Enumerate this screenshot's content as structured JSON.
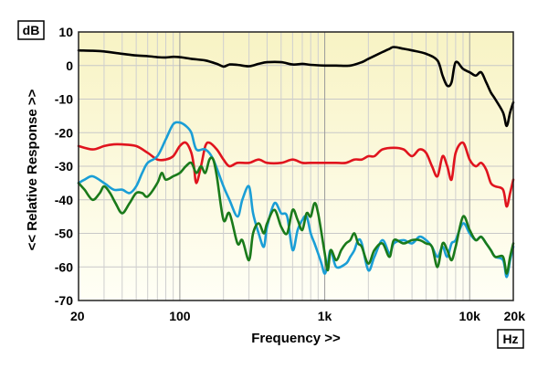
{
  "chart_data": {
    "type": "line",
    "xlabel": "Frequency >>",
    "ylabel": "<< Relative Response >>",
    "x_unit": "Hz",
    "y_unit": "dB",
    "x_scale": "log",
    "xlim": [
      20,
      20000
    ],
    "ylim": [
      -70,
      10
    ],
    "grid": true,
    "x_ticks": [
      {
        "value": 20,
        "label": "20"
      },
      {
        "value": 100,
        "label": "100"
      },
      {
        "value": 1000,
        "label": "1k"
      },
      {
        "value": 10000,
        "label": "10k"
      },
      {
        "value": 20000,
        "label": "20k"
      }
    ],
    "y_ticks": [
      10,
      0,
      -10,
      -20,
      -30,
      -40,
      -50,
      -60,
      -70
    ],
    "series": [
      {
        "color": "#000000",
        "points": [
          [
            20,
            4.5
          ],
          [
            25,
            4.4
          ],
          [
            30,
            4.2
          ],
          [
            40,
            3.5
          ],
          [
            50,
            3
          ],
          [
            60,
            2.8
          ],
          [
            70,
            2.5
          ],
          [
            80,
            2.4
          ],
          [
            90,
            2.6
          ],
          [
            100,
            2.5
          ],
          [
            120,
            2
          ],
          [
            150,
            1.5
          ],
          [
            180,
            0.5
          ],
          [
            200,
            -0.3
          ],
          [
            220,
            0.3
          ],
          [
            250,
            0.2
          ],
          [
            300,
            -0.2
          ],
          [
            350,
            0.5
          ],
          [
            400,
            1
          ],
          [
            500,
            1
          ],
          [
            600,
            0.3
          ],
          [
            700,
            0.5
          ],
          [
            800,
            0.2
          ],
          [
            1000,
            0
          ],
          [
            1200,
            0
          ],
          [
            1500,
            0
          ],
          [
            1800,
            1
          ],
          [
            2000,
            2
          ],
          [
            2500,
            4
          ],
          [
            2800,
            5
          ],
          [
            3000,
            5.5
          ],
          [
            3500,
            5
          ],
          [
            4000,
            4.5
          ],
          [
            5000,
            3.5
          ],
          [
            6000,
            1.5
          ],
          [
            6500,
            -3
          ],
          [
            7000,
            -6
          ],
          [
            7500,
            -5
          ],
          [
            8000,
            1
          ],
          [
            9000,
            -1
          ],
          [
            10000,
            -2
          ],
          [
            11000,
            -3
          ],
          [
            12000,
            -2
          ],
          [
            13000,
            -5
          ],
          [
            14000,
            -8
          ],
          [
            15000,
            -10
          ],
          [
            17000,
            -14
          ],
          [
            18000,
            -18
          ],
          [
            19000,
            -14
          ],
          [
            20000,
            -11
          ]
        ]
      },
      {
        "color": "#e0141e",
        "points": [
          [
            20,
            -24
          ],
          [
            25,
            -25
          ],
          [
            30,
            -24
          ],
          [
            35,
            -23.5
          ],
          [
            40,
            -23.5
          ],
          [
            50,
            -24
          ],
          [
            60,
            -26
          ],
          [
            70,
            -28
          ],
          [
            80,
            -28
          ],
          [
            90,
            -27
          ],
          [
            100,
            -24
          ],
          [
            110,
            -23
          ],
          [
            120,
            -26
          ],
          [
            125,
            -30
          ],
          [
            130,
            -35
          ],
          [
            140,
            -30
          ],
          [
            150,
            -24
          ],
          [
            160,
            -23
          ],
          [
            180,
            -25
          ],
          [
            200,
            -28
          ],
          [
            220,
            -30
          ],
          [
            250,
            -29
          ],
          [
            300,
            -29
          ],
          [
            350,
            -28
          ],
          [
            400,
            -29
          ],
          [
            500,
            -29
          ],
          [
            600,
            -28
          ],
          [
            700,
            -29
          ],
          [
            800,
            -29
          ],
          [
            1000,
            -29
          ],
          [
            1200,
            -29
          ],
          [
            1400,
            -29
          ],
          [
            1600,
            -28
          ],
          [
            1800,
            -28
          ],
          [
            2000,
            -27
          ],
          [
            2200,
            -27
          ],
          [
            2500,
            -25
          ],
          [
            3000,
            -24.5
          ],
          [
            3500,
            -25
          ],
          [
            4000,
            -27
          ],
          [
            4500,
            -25
          ],
          [
            5000,
            -26
          ],
          [
            5500,
            -30
          ],
          [
            6000,
            -33
          ],
          [
            6500,
            -27
          ],
          [
            7000,
            -30
          ],
          [
            7500,
            -34
          ],
          [
            8000,
            -26
          ],
          [
            9000,
            -23
          ],
          [
            10000,
            -28
          ],
          [
            11000,
            -30
          ],
          [
            12000,
            -29
          ],
          [
            13000,
            -31
          ],
          [
            14000,
            -35
          ],
          [
            15000,
            -36
          ],
          [
            17000,
            -37
          ],
          [
            18000,
            -42
          ],
          [
            19000,
            -38
          ],
          [
            20000,
            -34
          ]
        ]
      },
      {
        "color": "#1a9ed6",
        "points": [
          [
            20,
            -35
          ],
          [
            22,
            -34
          ],
          [
            25,
            -33
          ],
          [
            30,
            -35
          ],
          [
            35,
            -37
          ],
          [
            40,
            -37
          ],
          [
            45,
            -38
          ],
          [
            50,
            -36
          ],
          [
            55,
            -32
          ],
          [
            60,
            -29
          ],
          [
            70,
            -27
          ],
          [
            80,
            -22
          ],
          [
            90,
            -17.5
          ],
          [
            100,
            -17
          ],
          [
            110,
            -18
          ],
          [
            120,
            -20
          ],
          [
            130,
            -25
          ],
          [
            150,
            -25
          ],
          [
            170,
            -28
          ],
          [
            200,
            -36
          ],
          [
            220,
            -40
          ],
          [
            250,
            -45
          ],
          [
            270,
            -40
          ],
          [
            300,
            -36
          ],
          [
            320,
            -44
          ],
          [
            350,
            -50
          ],
          [
            380,
            -54
          ],
          [
            400,
            -48
          ],
          [
            450,
            -41
          ],
          [
            500,
            -44
          ],
          [
            550,
            -45
          ],
          [
            600,
            -55
          ],
          [
            650,
            -49
          ],
          [
            700,
            -46
          ],
          [
            750,
            -45
          ],
          [
            800,
            -50
          ],
          [
            850,
            -53
          ],
          [
            900,
            -56
          ],
          [
            950,
            -59
          ],
          [
            1000,
            -62
          ],
          [
            1050,
            -59
          ],
          [
            1100,
            -55
          ],
          [
            1200,
            -60
          ],
          [
            1400,
            -59
          ],
          [
            1500,
            -57
          ],
          [
            1600,
            -55
          ],
          [
            1700,
            -52
          ],
          [
            1800,
            -53
          ],
          [
            2000,
            -61
          ],
          [
            2200,
            -57
          ],
          [
            2500,
            -52
          ],
          [
            2800,
            -56
          ],
          [
            3000,
            -53
          ],
          [
            3500,
            -52
          ],
          [
            4000,
            -53
          ],
          [
            4500,
            -51
          ],
          [
            5000,
            -52
          ],
          [
            5500,
            -54
          ],
          [
            6000,
            -57
          ],
          [
            6500,
            -54
          ],
          [
            7000,
            -57
          ],
          [
            7500,
            -53
          ],
          [
            8000,
            -52
          ],
          [
            9000,
            -47
          ],
          [
            10000,
            -50
          ],
          [
            11000,
            -52
          ],
          [
            12000,
            -51
          ],
          [
            13000,
            -53
          ],
          [
            14000,
            -55
          ],
          [
            15000,
            -57
          ],
          [
            17000,
            -58
          ],
          [
            18000,
            -63
          ],
          [
            19000,
            -58
          ],
          [
            20000,
            -54
          ]
        ]
      },
      {
        "color": "#1a7a1a",
        "points": [
          [
            20,
            -35
          ],
          [
            22,
            -37
          ],
          [
            25,
            -40
          ],
          [
            28,
            -38
          ],
          [
            30,
            -36
          ],
          [
            33,
            -38
          ],
          [
            36,
            -41
          ],
          [
            40,
            -44
          ],
          [
            45,
            -41
          ],
          [
            50,
            -38
          ],
          [
            55,
            -38
          ],
          [
            60,
            -39
          ],
          [
            70,
            -35
          ],
          [
            75,
            -32
          ],
          [
            80,
            -34
          ],
          [
            90,
            -33
          ],
          [
            100,
            -32
          ],
          [
            110,
            -30
          ],
          [
            120,
            -29
          ],
          [
            130,
            -32
          ],
          [
            140,
            -30
          ],
          [
            150,
            -32
          ],
          [
            160,
            -28
          ],
          [
            170,
            -28
          ],
          [
            180,
            -33
          ],
          [
            200,
            -46
          ],
          [
            220,
            -44
          ],
          [
            250,
            -53
          ],
          [
            270,
            -52
          ],
          [
            300,
            -58
          ],
          [
            320,
            -50
          ],
          [
            350,
            -47
          ],
          [
            380,
            -50
          ],
          [
            400,
            -47
          ],
          [
            450,
            -43
          ],
          [
            500,
            -48
          ],
          [
            550,
            -50
          ],
          [
            600,
            -43
          ],
          [
            650,
            -46
          ],
          [
            700,
            -49
          ],
          [
            750,
            -44
          ],
          [
            800,
            -45
          ],
          [
            850,
            -41
          ],
          [
            900,
            -44
          ],
          [
            1000,
            -56
          ],
          [
            1050,
            -61
          ],
          [
            1100,
            -55
          ],
          [
            1200,
            -58
          ],
          [
            1300,
            -55
          ],
          [
            1400,
            -53
          ],
          [
            1500,
            -52
          ],
          [
            1600,
            -50
          ],
          [
            1700,
            -53
          ],
          [
            1800,
            -54
          ],
          [
            2000,
            -59
          ],
          [
            2200,
            -55
          ],
          [
            2500,
            -53
          ],
          [
            2800,
            -57
          ],
          [
            3000,
            -52
          ],
          [
            3500,
            -53
          ],
          [
            4000,
            -52
          ],
          [
            4500,
            -52
          ],
          [
            5000,
            -53
          ],
          [
            5500,
            -54
          ],
          [
            6000,
            -60
          ],
          [
            6500,
            -53
          ],
          [
            7000,
            -55
          ],
          [
            7500,
            -58
          ],
          [
            8000,
            -54
          ],
          [
            9000,
            -45
          ],
          [
            10000,
            -49
          ],
          [
            11000,
            -52
          ],
          [
            12000,
            -51
          ],
          [
            13000,
            -53
          ],
          [
            14000,
            -55
          ],
          [
            15000,
            -57
          ],
          [
            17000,
            -57
          ],
          [
            18000,
            -62
          ],
          [
            19000,
            -57
          ],
          [
            20000,
            -53
          ]
        ]
      }
    ]
  }
}
